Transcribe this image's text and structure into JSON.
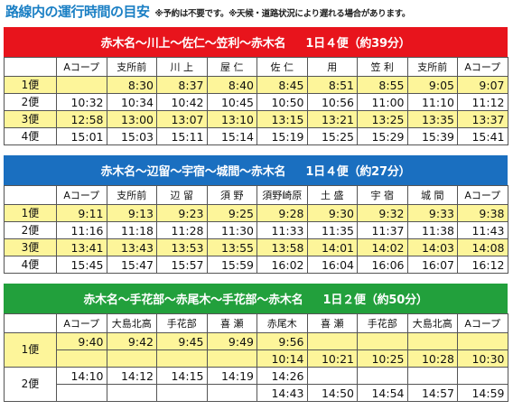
{
  "page": {
    "title": "路線内の運行時間の目安",
    "note": "※予約は不要です。※天候・道路状況により遅れる場合があります。"
  },
  "routes": [
    {
      "name": "赤木名〜川上〜佐仁〜笠利〜赤木名",
      "trips": "1日４便（約39分）",
      "color": "#e8141c",
      "stops": [
        "Aコープ",
        "支所前",
        "川 上",
        "屋 仁",
        "佐 仁",
        "用",
        "笠 利",
        "支所前",
        "Aコープ"
      ],
      "runs": [
        {
          "label": "1便",
          "times": [
            "",
            "8:30",
            "8:37",
            "8:40",
            "8:45",
            "8:51",
            "8:55",
            "9:05",
            "9:07"
          ]
        },
        {
          "label": "2便",
          "times": [
            "10:32",
            "10:34",
            "10:42",
            "10:45",
            "10:50",
            "10:56",
            "11:00",
            "11:10",
            "11:12"
          ]
        },
        {
          "label": "3便",
          "times": [
            "12:58",
            "13:00",
            "13:07",
            "13:10",
            "13:15",
            "13:21",
            "13:25",
            "13:35",
            "13:37"
          ]
        },
        {
          "label": "4便",
          "times": [
            "15:01",
            "15:03",
            "15:11",
            "15:14",
            "15:19",
            "15:25",
            "15:29",
            "15:39",
            "15:41"
          ]
        }
      ]
    },
    {
      "name": "赤木名〜辺留〜宇宿〜城間〜赤木名",
      "trips": "1日４便（約27分）",
      "color": "#1a6fc0",
      "stops": [
        "Aコープ",
        "支所前",
        "辺 留",
        "須 野",
        "須野崎原",
        "土 盛",
        "宇 宿",
        "城 間",
        "Aコープ"
      ],
      "runs": [
        {
          "label": "1便",
          "times": [
            "9:11",
            "9:13",
            "9:23",
            "9:25",
            "9:28",
            "9:30",
            "9:32",
            "9:33",
            "9:38"
          ]
        },
        {
          "label": "2便",
          "times": [
            "11:16",
            "11:18",
            "11:28",
            "11:30",
            "11:33",
            "11:35",
            "11:37",
            "11:38",
            "11:43"
          ]
        },
        {
          "label": "3便",
          "times": [
            "13:41",
            "13:43",
            "13:53",
            "13:55",
            "13:58",
            "14:01",
            "14:02",
            "14:03",
            "14:08"
          ]
        },
        {
          "label": "4便",
          "times": [
            "15:45",
            "15:47",
            "15:57",
            "15:59",
            "16:02",
            "16:04",
            "16:06",
            "16:07",
            "16:12"
          ]
        }
      ]
    },
    {
      "name": "赤木名〜手花部〜赤尾木〜手花部〜赤木名",
      "trips": "1日２便（約50分）",
      "color": "#22a03c",
      "stops": [
        "Aコープ",
        "大島北高",
        "手花部",
        "喜 瀬",
        "赤尾木",
        "喜 瀬",
        "手花部",
        "大島北高",
        "Aコープ"
      ],
      "runs": [
        {
          "label": "1便",
          "times_a": [
            "9:40",
            "9:42",
            "9:45",
            "9:49",
            "9:56",
            "",
            "",
            "",
            ""
          ],
          "times_b": [
            "",
            "",
            "",
            "",
            "10:14",
            "10:21",
            "10:25",
            "10:28",
            "10:30"
          ]
        },
        {
          "label": "2便",
          "times_a": [
            "14:10",
            "14:12",
            "14:15",
            "14:19",
            "14:26",
            "",
            "",
            "",
            ""
          ],
          "times_b": [
            "",
            "",
            "",
            "",
            "14:43",
            "14:50",
            "14:54",
            "14:57",
            "14:59"
          ]
        }
      ]
    }
  ]
}
